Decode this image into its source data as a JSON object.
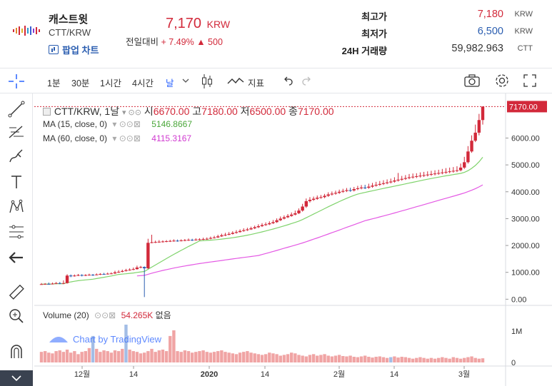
{
  "header": {
    "coin_name": "캐스트윗",
    "pair": "CTT/KRW",
    "popup_label": "팝업 차트",
    "price": "7,170",
    "currency": "KRW",
    "change_label": "전일대비",
    "change_pct": "+ 7.49%",
    "change_amt": "▲ 500"
  },
  "stats": [
    {
      "label": "최고가",
      "value": "7,180",
      "unit": "KRW"
    },
    {
      "label": "최저가",
      "value": "6,500",
      "unit": "KRW"
    },
    {
      "label": "24H 거래량",
      "value": "59,982.963",
      "unit": "CTT"
    }
  ],
  "toolbar": {
    "intervals": [
      "1분",
      "30분",
      "1시간",
      "4시간",
      "날"
    ],
    "active_interval": "날",
    "indicators_label": "지표"
  },
  "legend": {
    "symbol": "CTT/KRW, 1날",
    "o_label": "시",
    "o": "6670.00",
    "h_label": "고",
    "h": "7180.00",
    "l_label": "저",
    "l": "6500.00",
    "c_label": "종",
    "c": "7170.00",
    "ma15_label": "MA (15, close, 0)",
    "ma15_value": "5146.8667",
    "ma60_label": "MA (60, close, 0)",
    "ma60_value": "4115.3167",
    "volume_label": "Volume (20)",
    "volume_value": "54.265K",
    "volume_extra": "없음"
  },
  "watermark": "Chart by TradingView",
  "colors": {
    "up": "#d2293a",
    "down": "#2a5db0",
    "ma15": "#7fd36b",
    "ma60": "#e458e4",
    "vol_up": "#f0a4a4",
    "vol_down": "#a3bde6"
  },
  "chart_data": {
    "type": "candlestick",
    "series_label": "CTT/KRW",
    "y_ticks": [
      0,
      1000,
      2000,
      3000,
      4000,
      5000,
      6000
    ],
    "y_tick_labels": [
      "0.00",
      "1000.00",
      "2000.00",
      "3000.00",
      "4000.00",
      "5000.00",
      "6000.00"
    ],
    "last_price_label": "7170.00",
    "vol_ticks": [
      "1M",
      "0"
    ],
    "x_labels": [
      "12월",
      "14",
      "2020",
      "14",
      "2월",
      "14",
      "3월"
    ],
    "ylim": [
      -150,
      7500
    ],
    "candles": [
      [
        560,
        560,
        600,
        550
      ],
      [
        560,
        570,
        600,
        540
      ],
      [
        570,
        560,
        620,
        540
      ],
      [
        560,
        580,
        620,
        550
      ],
      [
        580,
        600,
        640,
        560
      ],
      [
        600,
        580,
        640,
        560
      ],
      [
        580,
        600,
        700,
        560
      ],
      [
        600,
        880,
        930,
        580
      ],
      [
        880,
        860,
        920,
        820
      ],
      [
        860,
        880,
        920,
        840
      ],
      [
        880,
        900,
        940,
        860
      ],
      [
        900,
        880,
        930,
        850
      ],
      [
        880,
        900,
        930,
        860
      ],
      [
        900,
        910,
        950,
        880
      ],
      [
        910,
        900,
        940,
        870
      ],
      [
        900,
        920,
        960,
        890
      ],
      [
        920,
        940,
        970,
        900
      ],
      [
        940,
        930,
        980,
        910
      ],
      [
        930,
        950,
        990,
        920
      ],
      [
        950,
        960,
        1000,
        930
      ],
      [
        960,
        1000,
        1060,
        940
      ],
      [
        1000,
        1020,
        1080,
        980
      ],
      [
        1020,
        1050,
        1100,
        1000
      ],
      [
        1050,
        1080,
        1130,
        1030
      ],
      [
        1080,
        1100,
        1150,
        1060
      ],
      [
        1100,
        1120,
        1180,
        1080
      ],
      [
        1120,
        1180,
        1250,
        1100
      ],
      [
        1180,
        1200,
        1240,
        1150
      ],
      [
        1200,
        1150,
        1220,
        80
      ],
      [
        1150,
        2100,
        2250,
        1120
      ],
      [
        2100,
        2120,
        2400,
        2080
      ],
      [
        2120,
        2130,
        2180,
        2090
      ],
      [
        2130,
        2140,
        2200,
        2100
      ],
      [
        2140,
        2150,
        2190,
        2110
      ],
      [
        2150,
        2160,
        2200,
        2120
      ],
      [
        2160,
        2170,
        2210,
        2130
      ],
      [
        2170,
        2180,
        2230,
        2140
      ],
      [
        2180,
        2170,
        2220,
        2140
      ],
      [
        2170,
        2190,
        2230,
        2150
      ],
      [
        2190,
        2200,
        2240,
        2160
      ],
      [
        2200,
        2210,
        2260,
        2170
      ],
      [
        2210,
        2200,
        2250,
        2170
      ],
      [
        2200,
        2220,
        2270,
        2180
      ],
      [
        2220,
        2230,
        2270,
        2190
      ],
      [
        2230,
        2240,
        2290,
        2200
      ],
      [
        2240,
        2250,
        2300,
        2210
      ],
      [
        2250,
        2280,
        2330,
        2230
      ],
      [
        2280,
        2300,
        2360,
        2260
      ],
      [
        2300,
        2340,
        2400,
        2280
      ],
      [
        2340,
        2380,
        2440,
        2320
      ],
      [
        2380,
        2400,
        2470,
        2350
      ],
      [
        2400,
        2430,
        2500,
        2380
      ],
      [
        2430,
        2470,
        2530,
        2410
      ],
      [
        2470,
        2500,
        2570,
        2440
      ],
      [
        2500,
        2540,
        2600,
        2480
      ],
      [
        2540,
        2570,
        2640,
        2510
      ],
      [
        2570,
        2600,
        2660,
        2540
      ],
      [
        2600,
        2640,
        2700,
        2580
      ],
      [
        2640,
        2680,
        2740,
        2610
      ],
      [
        2680,
        2720,
        2790,
        2650
      ],
      [
        2720,
        2760,
        2830,
        2690
      ],
      [
        2760,
        2790,
        2860,
        2730
      ],
      [
        2790,
        2830,
        2900,
        2760
      ],
      [
        2830,
        2870,
        2950,
        2800
      ],
      [
        2870,
        2940,
        3010,
        2840
      ],
      [
        2940,
        3000,
        3080,
        2910
      ],
      [
        3000,
        3050,
        3120,
        2970
      ],
      [
        3050,
        3100,
        3170,
        3020
      ],
      [
        3100,
        3150,
        3230,
        3070
      ],
      [
        3150,
        3200,
        3300,
        3120
      ],
      [
        3200,
        3300,
        3380,
        3170
      ],
      [
        3300,
        3450,
        3550,
        3260
      ],
      [
        3450,
        3650,
        3750,
        3400
      ],
      [
        3650,
        3700,
        3800,
        3600
      ],
      [
        3700,
        3740,
        3820,
        3660
      ],
      [
        3740,
        3780,
        3860,
        3700
      ],
      [
        3780,
        3800,
        3880,
        3740
      ],
      [
        3800,
        3850,
        3920,
        3760
      ],
      [
        3850,
        3900,
        3980,
        3810
      ],
      [
        3900,
        3930,
        4010,
        3860
      ],
      [
        3930,
        3960,
        4040,
        3890
      ],
      [
        3960,
        4000,
        4080,
        3920
      ],
      [
        4000,
        4030,
        4110,
        3960
      ],
      [
        4030,
        4060,
        4140,
        3990
      ],
      [
        4060,
        4050,
        4150,
        4000
      ],
      [
        4050,
        4100,
        4180,
        4010
      ],
      [
        4100,
        4130,
        4220,
        4060
      ],
      [
        4130,
        4160,
        4250,
        4090
      ],
      [
        4160,
        4150,
        4260,
        4100
      ],
      [
        4150,
        4190,
        4300,
        4110
      ],
      [
        4190,
        4230,
        4330,
        4150
      ],
      [
        4230,
        4260,
        4370,
        4190
      ],
      [
        4260,
        4290,
        4400,
        4220
      ],
      [
        4290,
        4320,
        4430,
        4250
      ],
      [
        4320,
        4350,
        4460,
        4280
      ],
      [
        4350,
        4380,
        4490,
        4310
      ],
      [
        4380,
        4420,
        4540,
        4340
      ],
      [
        4420,
        4450,
        4700,
        4380
      ],
      [
        4450,
        4480,
        4590,
        4410
      ],
      [
        4480,
        4510,
        4620,
        4440
      ],
      [
        4510,
        4540,
        4660,
        4470
      ],
      [
        4540,
        4560,
        4680,
        4490
      ],
      [
        4560,
        4580,
        4690,
        4510
      ],
      [
        4580,
        4600,
        4720,
        4530
      ],
      [
        4600,
        4620,
        4740,
        4550
      ],
      [
        4620,
        4640,
        4760,
        4570
      ],
      [
        4640,
        4660,
        4780,
        4590
      ],
      [
        4660,
        4680,
        4800,
        4610
      ],
      [
        4680,
        4700,
        4820,
        4630
      ],
      [
        4700,
        4720,
        4850,
        4650
      ],
      [
        4720,
        4740,
        4880,
        4670
      ],
      [
        4740,
        4760,
        4900,
        4690
      ],
      [
        4760,
        4780,
        4920,
        4710
      ],
      [
        4780,
        4800,
        4950,
        4730
      ],
      [
        4800,
        4900,
        5050,
        4760
      ],
      [
        4900,
        5100,
        5300,
        4850
      ],
      [
        5100,
        5500,
        5700,
        5050
      ],
      [
        5500,
        5900,
        6100,
        5450
      ],
      [
        5900,
        6200,
        6500,
        5850
      ],
      [
        6200,
        6670,
        6900,
        6100
      ],
      [
        6670,
        7170,
        7180,
        6500
      ]
    ],
    "volume": [
      [
        0.28,
        1
      ],
      [
        0.3,
        1
      ],
      [
        0.26,
        1
      ],
      [
        0.24,
        1
      ],
      [
        0.3,
        1
      ],
      [
        0.32,
        1
      ],
      [
        0.28,
        1
      ],
      [
        0.34,
        1
      ],
      [
        0.26,
        1
      ],
      [
        0.3,
        1
      ],
      [
        0.22,
        1
      ],
      [
        0.28,
        1
      ],
      [
        0.3,
        1
      ],
      [
        0.38,
        1
      ],
      [
        0.7,
        -1
      ],
      [
        0.36,
        1
      ],
      [
        0.28,
        1
      ],
      [
        0.32,
        1
      ],
      [
        0.3,
        1
      ],
      [
        0.26,
        1
      ],
      [
        0.32,
        1
      ],
      [
        0.3,
        1
      ],
      [
        0.36,
        1
      ],
      [
        1.0,
        -1
      ],
      [
        0.34,
        1
      ],
      [
        0.3,
        1
      ],
      [
        0.28,
        1
      ],
      [
        0.24,
        1
      ],
      [
        0.26,
        1
      ],
      [
        0.3,
        1
      ],
      [
        0.36,
        1
      ],
      [
        0.28,
        1
      ],
      [
        0.32,
        1
      ],
      [
        0.34,
        1
      ],
      [
        0.3,
        1
      ],
      [
        0.7,
        1
      ],
      [
        0.85,
        1
      ],
      [
        0.3,
        1
      ],
      [
        0.28,
        1
      ],
      [
        0.32,
        1
      ],
      [
        0.3,
        1
      ],
      [
        0.26,
        1
      ],
      [
        0.28,
        1
      ],
      [
        0.3,
        1
      ],
      [
        0.32,
        1
      ],
      [
        0.28,
        1
      ],
      [
        0.26,
        1
      ],
      [
        0.28,
        1
      ],
      [
        0.3,
        1
      ],
      [
        0.32,
        1
      ],
      [
        0.28,
        1
      ],
      [
        0.26,
        1
      ],
      [
        0.24,
        1
      ],
      [
        0.22,
        1
      ],
      [
        0.26,
        1
      ],
      [
        0.28,
        1
      ],
      [
        0.3,
        1
      ],
      [
        0.26,
        1
      ],
      [
        0.24,
        1
      ],
      [
        0.22,
        1
      ],
      [
        0.2,
        1
      ],
      [
        0.22,
        1
      ],
      [
        0.26,
        1
      ],
      [
        0.24,
        1
      ],
      [
        0.22,
        1
      ],
      [
        0.18,
        1
      ],
      [
        0.2,
        1
      ],
      [
        0.22,
        1
      ],
      [
        0.26,
        1
      ],
      [
        0.24,
        1
      ],
      [
        0.2,
        1
      ],
      [
        0.18,
        1
      ],
      [
        0.16,
        1
      ],
      [
        0.2,
        1
      ],
      [
        0.22,
        1
      ],
      [
        0.18,
        1
      ],
      [
        0.2,
        1
      ],
      [
        0.22,
        1
      ],
      [
        0.18,
        1
      ],
      [
        0.16,
        1
      ],
      [
        0.18,
        1
      ],
      [
        0.2,
        1
      ],
      [
        0.17,
        1
      ],
      [
        0.16,
        1
      ],
      [
        0.18,
        1
      ],
      [
        0.15,
        1
      ],
      [
        0.14,
        1
      ],
      [
        0.16,
        1
      ],
      [
        0.18,
        1
      ],
      [
        0.15,
        1
      ],
      [
        0.13,
        1
      ],
      [
        0.15,
        1
      ],
      [
        0.16,
        1
      ],
      [
        0.14,
        1
      ],
      [
        0.12,
        1
      ],
      [
        0.14,
        -1
      ],
      [
        0.16,
        1
      ],
      [
        0.13,
        1
      ],
      [
        0.15,
        1
      ],
      [
        0.14,
        1
      ],
      [
        0.12,
        1
      ],
      [
        0.1,
        1
      ],
      [
        0.12,
        1
      ],
      [
        0.14,
        1
      ],
      [
        0.12,
        1
      ],
      [
        0.1,
        1
      ],
      [
        0.12,
        1
      ],
      [
        0.1,
        1
      ],
      [
        0.12,
        1
      ],
      [
        0.14,
        1
      ],
      [
        0.12,
        1
      ],
      [
        0.1,
        1
      ],
      [
        0.14,
        1
      ],
      [
        0.12,
        1
      ],
      [
        0.1,
        1
      ],
      [
        0.12,
        1
      ],
      [
        0.14,
        1
      ],
      [
        0.16,
        1
      ],
      [
        0.12,
        1
      ],
      [
        0.1,
        1
      ],
      [
        0.11,
        1
      ]
    ]
  }
}
